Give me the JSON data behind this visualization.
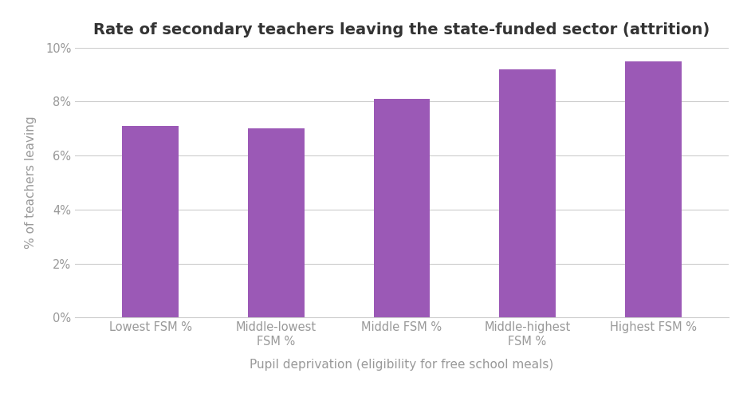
{
  "title": "Rate of secondary teachers leaving the state-funded sector (attrition)",
  "categories": [
    "Lowest FSM %",
    "Middle-lowest\nFSM %",
    "Middle FSM %",
    "Middle-highest\nFSM %",
    "Highest FSM %"
  ],
  "values": [
    0.071,
    0.07,
    0.081,
    0.092,
    0.095
  ],
  "bar_color": "#9b59b6",
  "xlabel": "Pupil deprivation (eligibility for free school meals)",
  "ylabel": "% of teachers leaving",
  "ylim": [
    0,
    0.1
  ],
  "yticks": [
    0,
    0.02,
    0.04,
    0.06,
    0.08,
    0.1
  ],
  "background_color": "#ffffff",
  "title_fontsize": 14,
  "label_fontsize": 11,
  "tick_fontsize": 10.5,
  "grid_color": "#cccccc",
  "text_color": "#999999",
  "title_color": "#333333"
}
